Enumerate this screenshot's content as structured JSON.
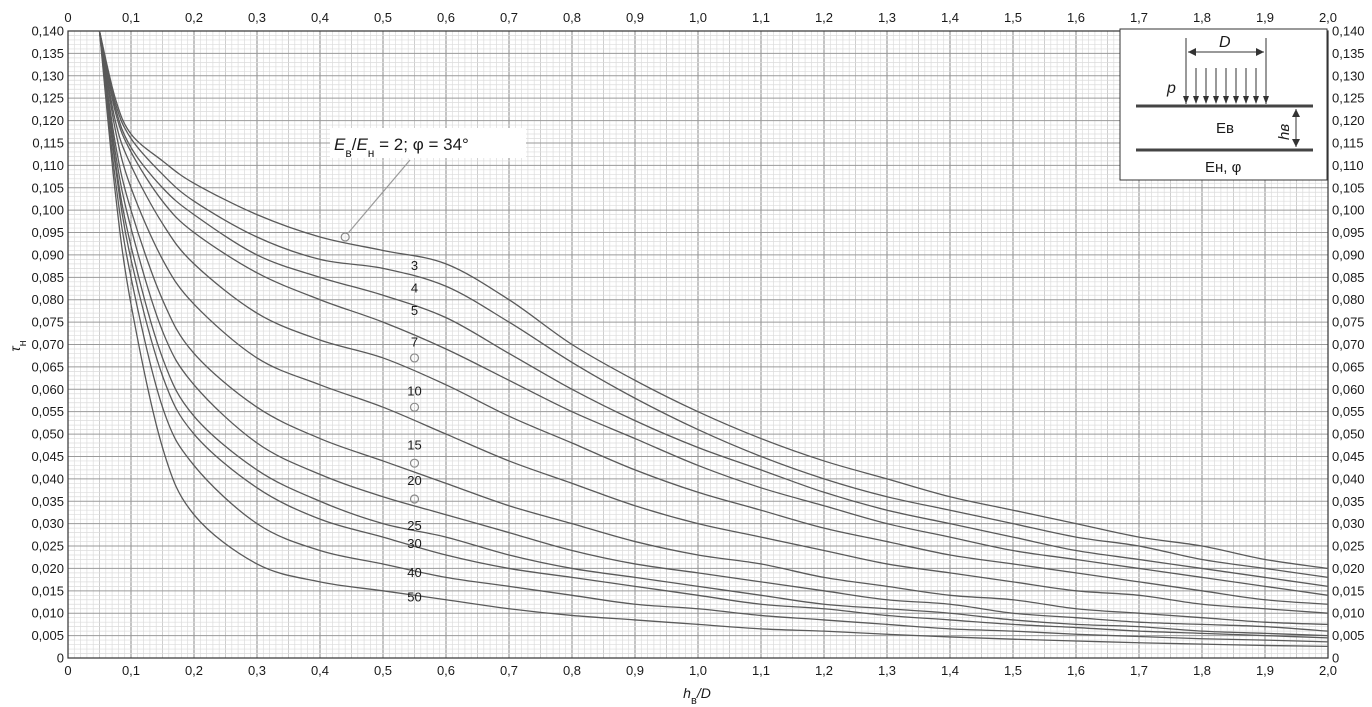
{
  "chart_data": {
    "type": "line",
    "title": "",
    "xlabel": "h_в/D",
    "ylabel": "τ_н",
    "xlim": [
      0,
      2.0
    ],
    "ylim": [
      0,
      0.14
    ],
    "grid": true,
    "x_ticks": [
      "0",
      "0,1",
      "0,2",
      "0,3",
      "0,4",
      "0,5",
      "0,6",
      "0,7",
      "0,8",
      "0,9",
      "1,0",
      "1,1",
      "1,2",
      "1,3",
      "1,4",
      "1,5",
      "1,6",
      "1,7",
      "1,8",
      "1,9",
      "2,0"
    ],
    "y_ticks": [
      "0",
      "0,005",
      "0,010",
      "0,015",
      "0,020",
      "0,025",
      "0,030",
      "0,035",
      "0,040",
      "0,045",
      "0,050",
      "0,055",
      "0,060",
      "0,065",
      "0,070",
      "0,075",
      "0,080",
      "0,085",
      "0,090",
      "0,095",
      "0,100",
      "0,105",
      "0,110",
      "0,115",
      "0,120",
      "0,125",
      "0,130",
      "0,135",
      "0,140"
    ],
    "annotation": {
      "text": "Eв/Eн = 2; φ = 34°",
      "point": [
        0.44,
        0.094
      ]
    },
    "series": [
      {
        "name": "2",
        "label_at": null,
        "x": [
          0.05,
          0.075,
          0.1,
          0.15,
          0.2,
          0.3,
          0.4,
          0.5,
          0.6,
          0.7,
          0.8,
          0.9,
          1.0,
          1.1,
          1.2,
          1.3,
          1.4,
          1.5,
          1.6,
          1.7,
          1.8,
          1.9,
          2.0
        ],
        "y": [
          0.14,
          0.125,
          0.117,
          0.111,
          0.106,
          0.099,
          0.094,
          0.091,
          0.088,
          0.08,
          0.07,
          0.062,
          0.055,
          0.049,
          0.044,
          0.04,
          0.036,
          0.033,
          0.03,
          0.027,
          0.025,
          0.022,
          0.02
        ]
      },
      {
        "name": "3",
        "label_at": [
          0.55,
          0.0875
        ],
        "x": [
          0.05,
          0.075,
          0.1,
          0.15,
          0.2,
          0.3,
          0.4,
          0.5,
          0.6,
          0.7,
          0.8,
          0.9,
          1.0,
          1.1,
          1.2,
          1.3,
          1.4,
          1.5,
          1.6,
          1.7,
          1.8,
          1.9,
          2.0
        ],
        "y": [
          0.14,
          0.124,
          0.116,
          0.108,
          0.102,
          0.094,
          0.089,
          0.087,
          0.083,
          0.075,
          0.066,
          0.058,
          0.051,
          0.045,
          0.04,
          0.036,
          0.033,
          0.03,
          0.027,
          0.025,
          0.022,
          0.02,
          0.018
        ]
      },
      {
        "name": "4",
        "label_at": [
          0.55,
          0.0825
        ],
        "x": [
          0.05,
          0.075,
          0.1,
          0.15,
          0.2,
          0.3,
          0.4,
          0.5,
          0.6,
          0.7,
          0.8,
          0.9,
          1.0,
          1.1,
          1.2,
          1.3,
          1.4,
          1.5,
          1.6,
          1.7,
          1.8,
          1.9,
          2.0
        ],
        "y": [
          0.14,
          0.123,
          0.114,
          0.105,
          0.099,
          0.09,
          0.085,
          0.081,
          0.076,
          0.068,
          0.06,
          0.053,
          0.047,
          0.042,
          0.037,
          0.033,
          0.03,
          0.027,
          0.024,
          0.022,
          0.02,
          0.018,
          0.016
        ]
      },
      {
        "name": "5",
        "label_at": [
          0.55,
          0.0775
        ],
        "x": [
          0.05,
          0.075,
          0.1,
          0.15,
          0.2,
          0.3,
          0.4,
          0.5,
          0.6,
          0.7,
          0.8,
          0.9,
          1.0,
          1.1,
          1.2,
          1.3,
          1.4,
          1.5,
          1.6,
          1.7,
          1.8,
          1.9,
          2.0
        ],
        "y": [
          0.14,
          0.122,
          0.113,
          0.102,
          0.095,
          0.086,
          0.08,
          0.075,
          0.069,
          0.062,
          0.055,
          0.049,
          0.043,
          0.038,
          0.034,
          0.03,
          0.027,
          0.024,
          0.022,
          0.02,
          0.018,
          0.016,
          0.014
        ]
      },
      {
        "name": "7",
        "label_at": [
          0.55,
          0.0705
        ],
        "x": [
          0.05,
          0.075,
          0.1,
          0.15,
          0.2,
          0.3,
          0.4,
          0.5,
          0.6,
          0.7,
          0.8,
          0.9,
          1.0,
          1.1,
          1.2,
          1.3,
          1.4,
          1.5,
          1.6,
          1.7,
          1.8,
          1.9,
          2.0
        ],
        "y": [
          0.14,
          0.12,
          0.11,
          0.097,
          0.088,
          0.077,
          0.071,
          0.067,
          0.061,
          0.054,
          0.048,
          0.042,
          0.037,
          0.033,
          0.029,
          0.026,
          0.023,
          0.021,
          0.019,
          0.017,
          0.015,
          0.013,
          0.012
        ]
      },
      {
        "name": "10",
        "label_at": [
          0.55,
          0.0595
        ],
        "x": [
          0.05,
          0.075,
          0.1,
          0.15,
          0.2,
          0.3,
          0.4,
          0.5,
          0.6,
          0.7,
          0.8,
          0.9,
          1.0,
          1.1,
          1.2,
          1.3,
          1.4,
          1.5,
          1.6,
          1.7,
          1.8,
          1.9,
          2.0
        ],
        "y": [
          0.14,
          0.118,
          0.105,
          0.089,
          0.079,
          0.067,
          0.061,
          0.056,
          0.05,
          0.044,
          0.039,
          0.034,
          0.03,
          0.027,
          0.024,
          0.021,
          0.019,
          0.017,
          0.015,
          0.014,
          0.012,
          0.011,
          0.01
        ]
      },
      {
        "name": "15",
        "label_at": [
          0.55,
          0.0475
        ],
        "x": [
          0.05,
          0.075,
          0.1,
          0.15,
          0.2,
          0.3,
          0.4,
          0.5,
          0.6,
          0.7,
          0.8,
          0.9,
          1.0,
          1.1,
          1.2,
          1.3,
          1.4,
          1.5,
          1.6,
          1.7,
          1.8,
          1.9,
          2.0
        ],
        "y": [
          0.14,
          0.115,
          0.1,
          0.08,
          0.068,
          0.056,
          0.049,
          0.044,
          0.039,
          0.034,
          0.03,
          0.026,
          0.023,
          0.021,
          0.018,
          0.016,
          0.014,
          0.013,
          0.011,
          0.01,
          0.009,
          0.008,
          0.0075
        ]
      },
      {
        "name": "20",
        "label_at": [
          0.55,
          0.0395
        ],
        "x": [
          0.05,
          0.075,
          0.1,
          0.15,
          0.2,
          0.3,
          0.4,
          0.5,
          0.6,
          0.7,
          0.8,
          0.9,
          1.0,
          1.1,
          1.2,
          1.3,
          1.4,
          1.5,
          1.6,
          1.7,
          1.8,
          1.9,
          2.0
        ],
        "y": [
          0.14,
          0.113,
          0.096,
          0.073,
          0.061,
          0.048,
          0.041,
          0.036,
          0.032,
          0.028,
          0.024,
          0.021,
          0.019,
          0.017,
          0.015,
          0.013,
          0.012,
          0.01,
          0.009,
          0.008,
          0.0075,
          0.007,
          0.006
        ]
      },
      {
        "name": "25",
        "label_at": [
          0.55,
          0.0295
        ],
        "x": [
          0.05,
          0.075,
          0.1,
          0.15,
          0.2,
          0.3,
          0.4,
          0.5,
          0.6,
          0.7,
          0.8,
          0.9,
          1.0,
          1.1,
          1.2,
          1.3,
          1.4,
          1.5,
          1.6,
          1.7,
          1.8,
          1.9,
          2.0
        ],
        "y": [
          0.14,
          0.111,
          0.092,
          0.067,
          0.054,
          0.042,
          0.035,
          0.03,
          0.027,
          0.023,
          0.02,
          0.018,
          0.016,
          0.014,
          0.012,
          0.011,
          0.01,
          0.0085,
          0.0075,
          0.007,
          0.006,
          0.0055,
          0.005
        ]
      },
      {
        "name": "30",
        "label_at": [
          0.55,
          0.0255
        ],
        "x": [
          0.05,
          0.075,
          0.1,
          0.15,
          0.2,
          0.3,
          0.4,
          0.5,
          0.6,
          0.7,
          0.8,
          0.9,
          1.0,
          1.1,
          1.2,
          1.3,
          1.4,
          1.5,
          1.6,
          1.7,
          1.8,
          1.9,
          2.0
        ],
        "y": [
          0.14,
          0.11,
          0.089,
          0.063,
          0.05,
          0.038,
          0.031,
          0.027,
          0.023,
          0.02,
          0.018,
          0.016,
          0.014,
          0.012,
          0.011,
          0.0095,
          0.0085,
          0.0075,
          0.0068,
          0.006,
          0.0055,
          0.005,
          0.0045
        ]
      },
      {
        "name": "40",
        "label_at": [
          0.55,
          0.019
        ],
        "x": [
          0.05,
          0.075,
          0.1,
          0.15,
          0.2,
          0.3,
          0.4,
          0.5,
          0.6,
          0.7,
          0.8,
          0.9,
          1.0,
          1.1,
          1.2,
          1.3,
          1.4,
          1.5,
          1.6,
          1.7,
          1.8,
          1.9,
          2.0
        ],
        "y": [
          0.14,
          0.107,
          0.085,
          0.056,
          0.043,
          0.03,
          0.024,
          0.021,
          0.018,
          0.016,
          0.014,
          0.012,
          0.011,
          0.0095,
          0.0085,
          0.0075,
          0.0065,
          0.006,
          0.0053,
          0.0048,
          0.0043,
          0.004,
          0.0036
        ]
      },
      {
        "name": "50",
        "label_at": [
          0.55,
          0.0135
        ],
        "x": [
          0.05,
          0.075,
          0.1,
          0.15,
          0.2,
          0.3,
          0.4,
          0.5,
          0.6,
          0.7,
          0.8,
          0.9,
          1.0,
          1.1,
          1.2,
          1.3,
          1.4,
          1.5,
          1.6,
          1.7,
          1.8,
          1.9,
          2.0
        ],
        "y": [
          0.14,
          0.104,
          0.079,
          0.047,
          0.032,
          0.021,
          0.017,
          0.015,
          0.013,
          0.011,
          0.0095,
          0.0085,
          0.0075,
          0.0065,
          0.006,
          0.0053,
          0.0047,
          0.0042,
          0.0038,
          0.0034,
          0.0031,
          0.0028,
          0.0026
        ]
      }
    ],
    "markers": [
      {
        "x": 0.44,
        "y": 0.094
      },
      {
        "x": 0.55,
        "y": 0.067
      },
      {
        "x": 0.55,
        "y": 0.056
      },
      {
        "x": 0.55,
        "y": 0.0435
      },
      {
        "x": 0.55,
        "y": 0.0355
      }
    ],
    "inset": {
      "labels": [
        "D",
        "p",
        "Eв",
        "hв",
        "Eн, φ"
      ]
    }
  }
}
